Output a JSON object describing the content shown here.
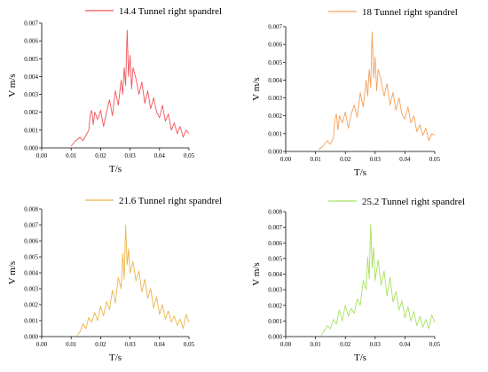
{
  "chart_data": [
    {
      "type": "line",
      "legend": "14.4 Tunnel right spandrel",
      "color": "#f0545c",
      "xlabel": "T/s",
      "ylabel": "V m/s",
      "xlim": [
        0,
        0.05
      ],
      "ylim": [
        0,
        0.007
      ],
      "xticks": [
        "0.00",
        "0.01",
        "0.02",
        "0.03",
        "0.04",
        "0.05"
      ],
      "yticks": [
        "0.000",
        "0.001",
        "0.002",
        "0.003",
        "0.004",
        "0.005",
        "0.006",
        "0.007"
      ],
      "x": [
        0.01,
        0.0115,
        0.013,
        0.014,
        0.015,
        0.016,
        0.0165,
        0.017,
        0.0175,
        0.018,
        0.019,
        0.02,
        0.021,
        0.022,
        0.023,
        0.024,
        0.025,
        0.026,
        0.027,
        0.0275,
        0.028,
        0.0285,
        0.029,
        0.0295,
        0.03,
        0.0305,
        0.031,
        0.032,
        0.033,
        0.034,
        0.035,
        0.036,
        0.037,
        0.038,
        0.039,
        0.04,
        0.041,
        0.042,
        0.043,
        0.044,
        0.045,
        0.046,
        0.047,
        0.048,
        0.049,
        0.05
      ],
      "y": [
        0.0001,
        0.0004,
        0.0006,
        0.0004,
        0.0007,
        0.001,
        0.0019,
        0.0021,
        0.0013,
        0.002,
        0.0016,
        0.0021,
        0.0012,
        0.002,
        0.0027,
        0.0018,
        0.0032,
        0.0024,
        0.0038,
        0.003,
        0.0045,
        0.0035,
        0.0066,
        0.004,
        0.0052,
        0.0033,
        0.0045,
        0.0039,
        0.003,
        0.0037,
        0.0025,
        0.0032,
        0.0022,
        0.0028,
        0.002,
        0.0017,
        0.0024,
        0.0015,
        0.0019,
        0.001,
        0.0014,
        0.0008,
        0.0012,
        0.0006,
        0.001,
        0.0008
      ]
    },
    {
      "type": "line",
      "legend": "18 Tunnel right spandrel",
      "color": "#f5a05a",
      "xlabel": "T/s",
      "ylabel": "V m/s",
      "xlim": [
        0,
        0.05
      ],
      "ylim": [
        0,
        0.007
      ],
      "xticks": [
        "0.00",
        "0.01",
        "0.02",
        "0.03",
        "0.04",
        "0.05"
      ],
      "yticks": [
        "0.000",
        "0.001",
        "0.002",
        "0.003",
        "0.004",
        "0.005",
        "0.006",
        "0.007"
      ],
      "x": [
        0.011,
        0.0125,
        0.014,
        0.015,
        0.016,
        0.0165,
        0.017,
        0.0175,
        0.018,
        0.019,
        0.02,
        0.021,
        0.022,
        0.023,
        0.024,
        0.025,
        0.026,
        0.027,
        0.0275,
        0.028,
        0.0285,
        0.029,
        0.0295,
        0.03,
        0.0305,
        0.031,
        0.032,
        0.033,
        0.034,
        0.035,
        0.036,
        0.037,
        0.038,
        0.039,
        0.04,
        0.041,
        0.042,
        0.043,
        0.044,
        0.045,
        0.046,
        0.047,
        0.048,
        0.049,
        0.05
      ],
      "y": [
        0.0001,
        0.0003,
        0.0006,
        0.0004,
        0.0008,
        0.0018,
        0.0021,
        0.0012,
        0.002,
        0.0016,
        0.0022,
        0.0013,
        0.0021,
        0.0026,
        0.0019,
        0.0033,
        0.0025,
        0.004,
        0.0031,
        0.0046,
        0.0036,
        0.0067,
        0.0041,
        0.0053,
        0.0034,
        0.0046,
        0.004,
        0.0031,
        0.0038,
        0.0026,
        0.0033,
        0.0023,
        0.003,
        0.0021,
        0.0018,
        0.0025,
        0.0016,
        0.002,
        0.0011,
        0.0015,
        0.0009,
        0.0013,
        0.0006,
        0.001,
        0.0009
      ]
    },
    {
      "type": "line",
      "legend": "21.6 Tunnel right spandrel",
      "color": "#ebb548",
      "xlabel": "T/s",
      "ylabel": "V m/s",
      "xlim": [
        0,
        0.05
      ],
      "ylim": [
        0,
        0.008
      ],
      "xticks": [
        "0.00",
        "0.01",
        "0.02",
        "0.03",
        "0.04",
        "0.05"
      ],
      "yticks": [
        "0.000",
        "0.001",
        "0.002",
        "0.003",
        "0.004",
        "0.005",
        "0.006",
        "0.007",
        "0.008"
      ],
      "x": [
        0.012,
        0.013,
        0.014,
        0.015,
        0.016,
        0.017,
        0.018,
        0.019,
        0.02,
        0.021,
        0.022,
        0.023,
        0.024,
        0.025,
        0.026,
        0.027,
        0.0275,
        0.028,
        0.0285,
        0.029,
        0.0295,
        0.03,
        0.031,
        0.032,
        0.033,
        0.034,
        0.035,
        0.036,
        0.037,
        0.038,
        0.039,
        0.04,
        0.041,
        0.042,
        0.043,
        0.044,
        0.045,
        0.046,
        0.047,
        0.048,
        0.049,
        0.05
      ],
      "y": [
        0.0001,
        0.0003,
        0.0008,
        0.0005,
        0.0012,
        0.0009,
        0.0015,
        0.001,
        0.0019,
        0.0013,
        0.0022,
        0.0017,
        0.0029,
        0.0021,
        0.0037,
        0.003,
        0.0052,
        0.0036,
        0.007,
        0.0045,
        0.0055,
        0.004,
        0.0047,
        0.0035,
        0.0041,
        0.0028,
        0.0036,
        0.0024,
        0.003,
        0.0018,
        0.0025,
        0.0014,
        0.002,
        0.0011,
        0.0016,
        0.0009,
        0.0013,
        0.0007,
        0.0011,
        0.0005,
        0.0014,
        0.0009
      ]
    },
    {
      "type": "line",
      "legend": "25.2 Tunnel right spandrel",
      "color": "#a8e060",
      "xlabel": "T/s",
      "ylabel": "V m/s",
      "xlim": [
        0,
        0.05
      ],
      "ylim": [
        0,
        0.008
      ],
      "xticks": [
        "0.00",
        "0.01",
        "0.02",
        "0.03",
        "0.04",
        "0.05"
      ],
      "yticks": [
        "0.000",
        "0.001",
        "0.002",
        "0.003",
        "0.004",
        "0.005",
        "0.006",
        "0.007",
        "0.008"
      ],
      "x": [
        0.012,
        0.013,
        0.014,
        0.015,
        0.016,
        0.017,
        0.018,
        0.019,
        0.02,
        0.021,
        0.022,
        0.023,
        0.024,
        0.025,
        0.026,
        0.027,
        0.0275,
        0.028,
        0.0285,
        0.029,
        0.0295,
        0.03,
        0.031,
        0.032,
        0.033,
        0.034,
        0.035,
        0.036,
        0.037,
        0.038,
        0.039,
        0.04,
        0.041,
        0.042,
        0.043,
        0.044,
        0.045,
        0.046,
        0.047,
        0.048,
        0.049,
        0.05
      ],
      "y": [
        0.0001,
        0.0004,
        0.0007,
        0.0005,
        0.0011,
        0.0008,
        0.0017,
        0.001,
        0.002,
        0.0013,
        0.0018,
        0.0015,
        0.0024,
        0.002,
        0.0036,
        0.003,
        0.0051,
        0.0037,
        0.0072,
        0.0044,
        0.0057,
        0.0036,
        0.0049,
        0.0033,
        0.0042,
        0.0026,
        0.0038,
        0.0022,
        0.0029,
        0.0017,
        0.0023,
        0.0012,
        0.0019,
        0.001,
        0.0016,
        0.0007,
        0.0013,
        0.0006,
        0.0011,
        0.0005,
        0.0014,
        0.0009
      ]
    }
  ]
}
